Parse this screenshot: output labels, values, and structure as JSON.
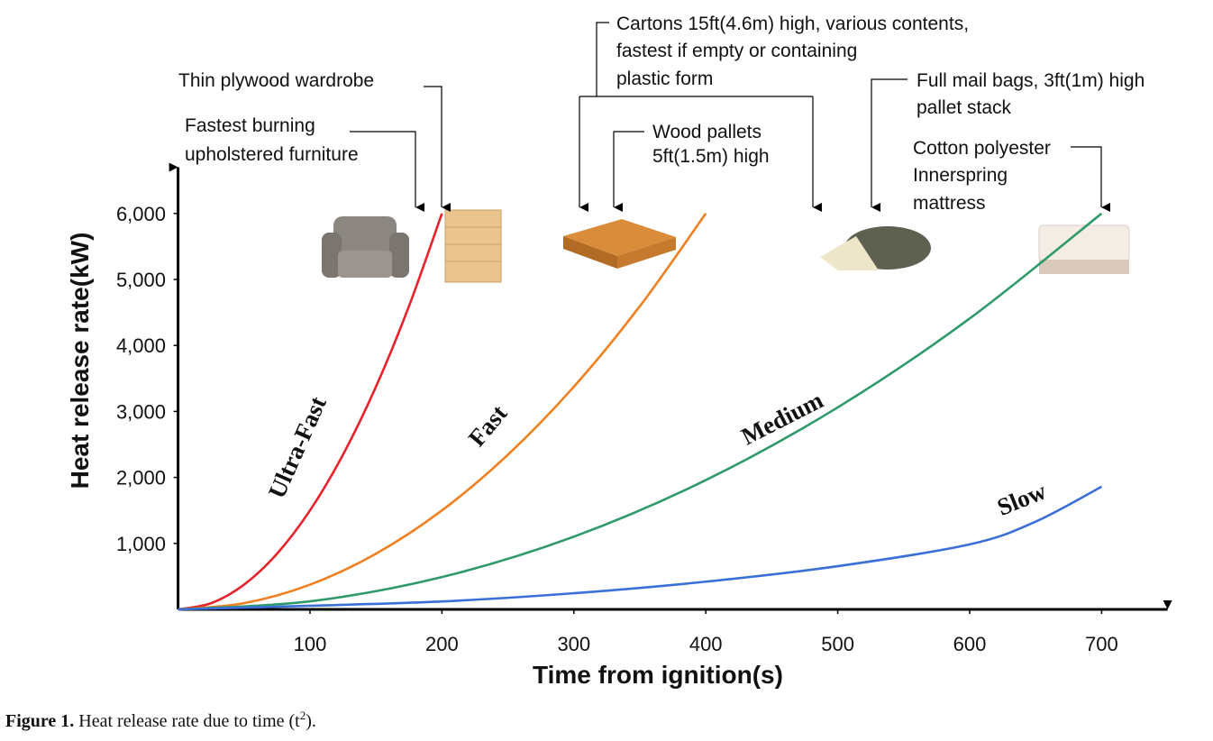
{
  "chart_data": {
    "type": "line",
    "xlabel": "Time from ignition(s)",
    "ylabel": "Heat release rate(kW)",
    "xlim": [
      0,
      750
    ],
    "ylim": [
      0,
      6700
    ],
    "xticks": [
      100,
      200,
      300,
      400,
      500,
      600,
      700
    ],
    "yticks": [
      {
        "value": 1000,
        "label": "1,000"
      },
      {
        "value": 2000,
        "label": "2,000"
      },
      {
        "value": 3000,
        "label": "3,000"
      },
      {
        "value": 4000,
        "label": "4,000"
      },
      {
        "value": 5000,
        "label": "5,000"
      },
      {
        "value": 6000,
        "label": "6,000"
      }
    ],
    "series": [
      {
        "name": "Ultra-Fast",
        "color": "#e8222a",
        "x": [
          0,
          25,
          50,
          75,
          100,
          125,
          150,
          175,
          200
        ],
        "values": [
          0,
          94,
          375,
          844,
          1500,
          2344,
          3375,
          4594,
          6000
        ]
      },
      {
        "name": "Fast",
        "color": "#f07f1f",
        "x": [
          0,
          50,
          100,
          150,
          200,
          250,
          300,
          350,
          400
        ],
        "values": [
          0,
          94,
          375,
          844,
          1500,
          2344,
          3375,
          4594,
          6000
        ]
      },
      {
        "name": "Medium",
        "color": "#2e9a6a",
        "x": [
          0,
          100,
          200,
          300,
          400,
          500,
          600,
          700
        ],
        "values": [
          0,
          122,
          490,
          1102,
          1959,
          3061,
          4408,
          6000
        ]
      },
      {
        "name": "Slow",
        "color": "#3a6fd8",
        "x": [
          0,
          100,
          200,
          300,
          400,
          500,
          600,
          650,
          700
        ],
        "values": [
          0,
          55,
          120,
          245,
          420,
          655,
          985,
          1330,
          1860
        ]
      }
    ],
    "annotations": [
      {
        "lines": [
          "Fastest burning",
          "upholstered furniture"
        ]
      },
      {
        "lines": [
          "Thin plywood wardrobe"
        ]
      },
      {
        "lines": [
          "Cartons 15ft(4.6m) high, various contents,",
          "fastest if empty or containing",
          "plastic form"
        ]
      },
      {
        "lines": [
          "Wood pallets",
          "5ft(1.5m) high"
        ]
      },
      {
        "lines": [
          "Full mail bags, 3ft(1m) high",
          "pallet stack"
        ]
      },
      {
        "lines": [
          "Cotton polyester",
          "Innerspring",
          "mattress"
        ]
      }
    ]
  },
  "caption": {
    "label": "Figure 1.",
    "text": "Heat release rate due to time (t",
    "sup": "2",
    "end": ")."
  }
}
